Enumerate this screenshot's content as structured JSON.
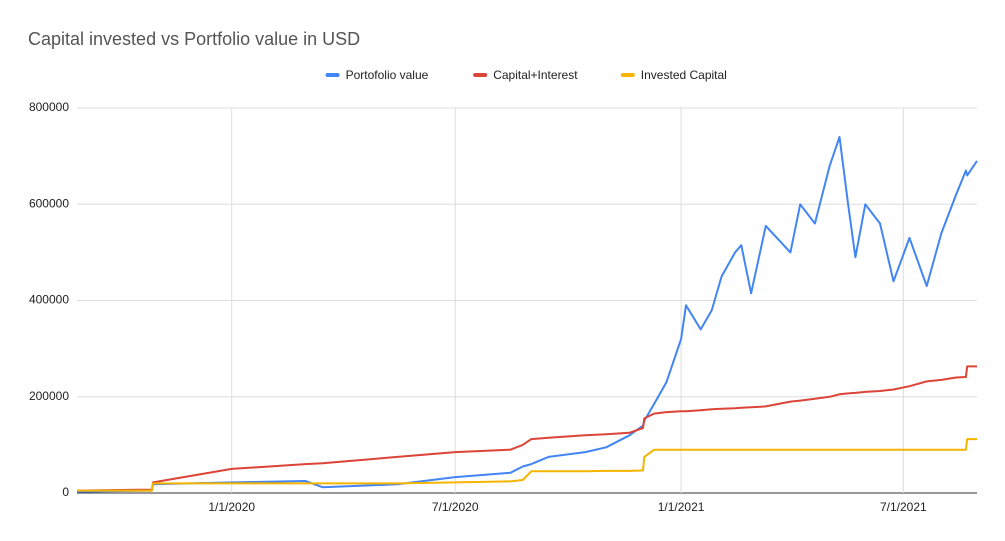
{
  "chart_data": {
    "type": "line",
    "title": "Capital invested vs Portfolio value in USD",
    "x": [
      "8/28/2019",
      "10/28/2019",
      "10/29/2019",
      "1/1/2020",
      "3/1/2020",
      "3/15/2020",
      "5/15/2020",
      "7/1/2020",
      "8/15/2020",
      "8/25/2020",
      "9/1/2020",
      "9/15/2020",
      "10/15/2020",
      "11/1/2020",
      "11/20/2020",
      "12/1/2020",
      "12/2/2020",
      "12/10/2020",
      "12/20/2020",
      "1/1/2021",
      "1/5/2021",
      "1/17/2021",
      "1/26/2021",
      "2/3/2021",
      "2/14/2021",
      "2/19/2021",
      "2/27/2021",
      "3/11/2021",
      "3/31/2021",
      "4/8/2021",
      "4/20/2021",
      "5/2/2021",
      "5/10/2021",
      "5/17/2021",
      "5/23/2021",
      "5/31/2021",
      "6/12/2021",
      "6/23/2021",
      "7/6/2021",
      "7/20/2021",
      "8/1/2021",
      "8/13/2021",
      "8/21/2021",
      "8/22/2021",
      "8/30/2021"
    ],
    "series": [
      {
        "name": "Portofolio value",
        "color": "#4285f4",
        "values": [
          3000,
          5000,
          18000,
          22000,
          25000,
          12000,
          18000,
          33000,
          42000,
          55000,
          60000,
          75000,
          85000,
          95000,
          120000,
          140000,
          150000,
          185000,
          230000,
          320000,
          390000,
          340000,
          380000,
          450000,
          500000,
          515000,
          415000,
          555000,
          500000,
          600000,
          560000,
          680000,
          740000,
          600000,
          490000,
          600000,
          560000,
          440000,
          530000,
          430000,
          540000,
          620000,
          670000,
          660000,
          690000
        ]
      },
      {
        "name": "Capital+Interest",
        "color": "#db4437",
        "values": [
          5000,
          7000,
          22000,
          50000,
          60000,
          62000,
          75000,
          85000,
          90000,
          100000,
          112000,
          115000,
          120000,
          122000,
          125000,
          135000,
          155000,
          165000,
          168000,
          170000,
          170000,
          172000,
          174000,
          175000,
          176000,
          177000,
          178000,
          180000,
          190000,
          192000,
          196000,
          200000,
          205000,
          207000,
          208000,
          210000,
          212000,
          215000,
          222000,
          232000,
          235000,
          240000,
          241000,
          263000,
          263000
        ]
      },
      {
        "name": "Invested Capital",
        "color": "#f4b400",
        "values": [
          5000,
          5000,
          20000,
          20000,
          20000,
          20000,
          20000,
          22000,
          24000,
          27000,
          45000,
          45000,
          45000,
          46000,
          46000,
          47000,
          75000,
          90000,
          90000,
          90000,
          90000,
          90000,
          90000,
          90000,
          90000,
          90000,
          90000,
          90000,
          90000,
          90000,
          90000,
          90000,
          90000,
          90000,
          90000,
          90000,
          90000,
          90000,
          90000,
          90000,
          90000,
          90000,
          90000,
          112000,
          112000
        ]
      }
    ],
    "xlim": [
      "8/28/2019",
      "8/30/2021"
    ],
    "xticks": [
      "1/1/2020",
      "7/1/2020",
      "1/1/2021",
      "7/1/2021"
    ],
    "ylim": [
      0,
      800000
    ],
    "yticks": [
      0,
      200000,
      400000,
      600000,
      800000
    ],
    "grid": true,
    "legend": "top"
  }
}
